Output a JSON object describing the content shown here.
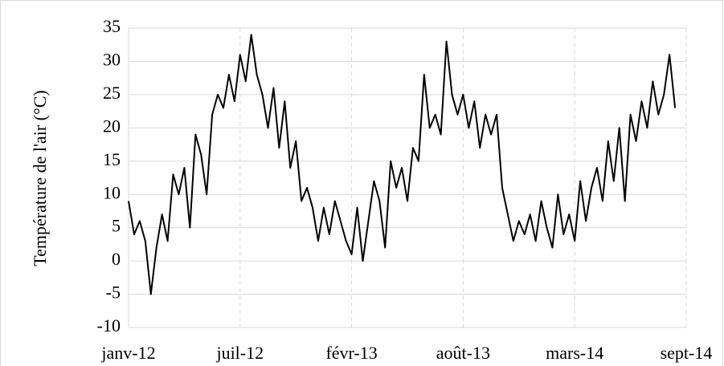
{
  "chart_data": {
    "type": "line",
    "y_label": "Température de l'air (°C)",
    "color": "#000000",
    "grid": true,
    "ylim": [
      -10,
      35
    ],
    "yticks": [
      -10,
      -5,
      0,
      5,
      10,
      15,
      20,
      25,
      30,
      35
    ],
    "categories": [
      "janv-12",
      null,
      null,
      null,
      null,
      null,
      null,
      null,
      null,
      null,
      null,
      null,
      null,
      null,
      null,
      null,
      null,
      null,
      null,
      null,
      "juil-12",
      null,
      null,
      null,
      null,
      null,
      null,
      null,
      null,
      null,
      null,
      null,
      null,
      null,
      null,
      null,
      null,
      null,
      null,
      null,
      "févr-13",
      null,
      null,
      null,
      null,
      null,
      null,
      null,
      null,
      null,
      null,
      null,
      null,
      null,
      null,
      null,
      null,
      null,
      null,
      null,
      "août-13",
      null,
      null,
      null,
      null,
      null,
      null,
      null,
      null,
      null,
      null,
      null,
      null,
      null,
      null,
      null,
      null,
      null,
      null,
      null,
      "mars-14",
      null,
      null,
      null,
      null,
      null,
      null,
      null,
      null,
      null,
      null,
      null,
      null,
      null,
      null,
      null,
      null,
      null,
      null,
      null,
      "sept-14"
    ],
    "values": [
      9,
      4,
      6,
      3,
      -5,
      2,
      7,
      3,
      13,
      10,
      14,
      5,
      19,
      16,
      10,
      22,
      25,
      23,
      28,
      24,
      31,
      27,
      34,
      28,
      25,
      20,
      26,
      17,
      24,
      14,
      18,
      9,
      11,
      8,
      3,
      8,
      4,
      9,
      6,
      3,
      1,
      8,
      0,
      6,
      12,
      9,
      2,
      15,
      11,
      14,
      9,
      17,
      15,
      28,
      20,
      22,
      19,
      33,
      25,
      22,
      25,
      20,
      24,
      17,
      22,
      19,
      22,
      11,
      7,
      3,
      6,
      4,
      7,
      3,
      9,
      5,
      2,
      10,
      4,
      7,
      3,
      12,
      6,
      11,
      14,
      9,
      18,
      12,
      20,
      9,
      22,
      18,
      24,
      20,
      27,
      22,
      25,
      31,
      23,
      null,
      null
    ]
  }
}
